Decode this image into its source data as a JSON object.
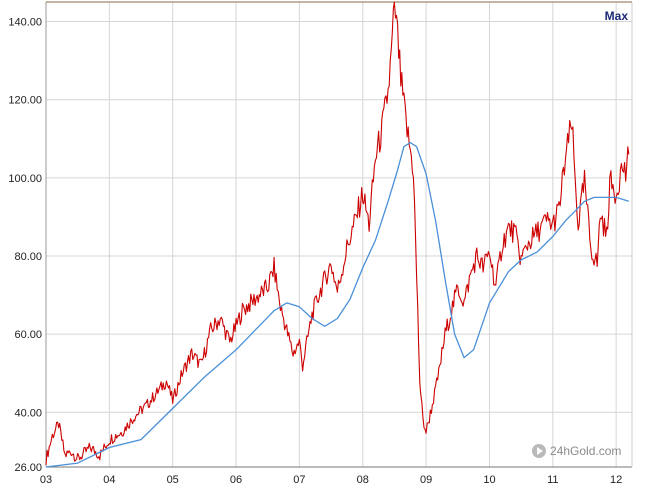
{
  "range_button": "Max",
  "watermark": "24hGold.com",
  "colors": {
    "price": "#cc0000",
    "average": "#4a90d9",
    "grid": "#d6d6d6"
  },
  "icons": {
    "watermark": "play-circle-icon"
  },
  "chart_data": {
    "type": "line",
    "x_unit": "year",
    "x_tick_labels": [
      "03",
      "04",
      "05",
      "06",
      "07",
      "08",
      "09",
      "10",
      "11",
      "12"
    ],
    "x_ticks": [
      2003,
      2004,
      2005,
      2006,
      2007,
      2008,
      2009,
      2010,
      2011,
      2012
    ],
    "xlim": [
      2003.0,
      2012.25
    ],
    "y_tick_labels": [
      "26.00",
      "40.00",
      "60.00",
      "80.00",
      "100.00",
      "120.00",
      "140.00"
    ],
    "y_ticks": [
      26,
      40,
      60,
      80,
      100,
      120,
      140
    ],
    "ylim": [
      26,
      145
    ],
    "grid": true,
    "legend": "none",
    "series": [
      {
        "color": "#cc0000",
        "x": [
          2003.0,
          2003.1,
          2003.2,
          2003.3,
          2003.4,
          2003.5,
          2003.7,
          2003.85,
          2004.0,
          2004.2,
          2004.4,
          2004.6,
          2004.75,
          2004.9,
          2005.0,
          2005.15,
          2005.3,
          2005.45,
          2005.6,
          2005.75,
          2005.9,
          2006.0,
          2006.1,
          2006.3,
          2006.5,
          2006.6,
          2006.7,
          2006.8,
          2006.9,
          2007.0,
          2007.05,
          2007.2,
          2007.35,
          2007.5,
          2007.6,
          2007.75,
          2007.9,
          2008.0,
          2008.1,
          2008.2,
          2008.3,
          2008.4,
          2008.45,
          2008.5,
          2008.55,
          2008.6,
          2008.7,
          2008.8,
          2008.85,
          2008.9,
          2008.95,
          2009.0,
          2009.1,
          2009.2,
          2009.3,
          2009.4,
          2009.5,
          2009.6,
          2009.7,
          2009.8,
          2009.9,
          2010.0,
          2010.1,
          2010.2,
          2010.3,
          2010.4,
          2010.5,
          2010.6,
          2010.75,
          2010.9,
          2011.0,
          2011.1,
          2011.2,
          2011.3,
          2011.35,
          2011.4,
          2011.5,
          2011.6,
          2011.7,
          2011.75,
          2011.85,
          2011.9,
          2012.0,
          2012.05,
          2012.1,
          2012.15,
          2012.2
        ],
        "y": [
          28,
          34,
          37,
          29,
          30,
          28,
          31,
          29,
          33,
          35,
          39,
          42,
          45,
          48,
          43,
          50,
          55,
          52,
          61,
          64,
          58,
          62,
          66,
          69,
          72,
          77,
          67,
          61,
          55,
          58,
          52,
          65,
          72,
          78,
          71,
          82,
          90,
          96,
          88,
          105,
          112,
          122,
          131,
          145,
          136,
          125,
          112,
          102,
          75,
          48,
          38,
          35,
          42,
          50,
          60,
          66,
          72,
          68,
          75,
          80,
          77,
          81,
          72,
          83,
          87,
          86,
          79,
          83,
          86,
          89,
          88,
          92,
          105,
          114,
          100,
          88,
          99,
          82,
          78,
          91,
          85,
          99,
          96,
          100,
          103,
          101,
          106
        ]
      },
      {
        "color": "#4a90d9",
        "x": [
          2003.0,
          2003.5,
          2004.0,
          2004.5,
          2005.0,
          2005.5,
          2006.0,
          2006.3,
          2006.6,
          2006.8,
          2007.0,
          2007.2,
          2007.4,
          2007.6,
          2007.8,
          2008.0,
          2008.2,
          2008.4,
          2008.55,
          2008.65,
          2008.75,
          2008.85,
          2009.0,
          2009.15,
          2009.3,
          2009.45,
          2009.6,
          2009.75,
          2010.0,
          2010.3,
          2010.5,
          2010.75,
          2011.0,
          2011.2,
          2011.5,
          2011.65,
          2011.8,
          2012.0,
          2012.2
        ],
        "y": [
          26,
          27,
          31,
          33,
          41,
          49,
          56,
          61,
          66,
          68,
          67,
          64,
          62,
          64,
          69,
          77,
          84,
          94,
          102,
          108,
          109,
          108,
          101,
          89,
          74,
          60,
          54,
          56,
          68,
          76,
          79,
          81,
          85,
          89,
          94,
          95,
          95,
          95,
          94
        ]
      }
    ]
  }
}
